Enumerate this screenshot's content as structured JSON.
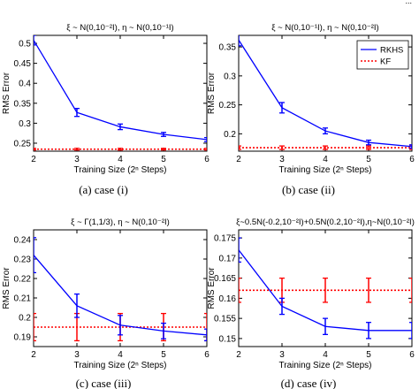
{
  "figure": {
    "header_fragment": "..."
  },
  "chart_data": [
    {
      "type": "line",
      "title": "ξ ~ N(0,10⁻²I), η ~ N(0,10⁻¹I)",
      "xlabel": "Training Size (2ⁿ Steps)",
      "ylabel": "RMS Error",
      "caption": "(a)  case (i)",
      "x": [
        2,
        3,
        4,
        5,
        6
      ],
      "xticks": [
        "2",
        "3",
        "4",
        "5",
        "6"
      ],
      "xlim": [
        2,
        6
      ],
      "ylim": [
        0.23,
        0.52
      ],
      "yticks": [
        0.25,
        0.3,
        0.35,
        0.4,
        0.45,
        0.5
      ],
      "ytick_labels": [
        "0.25",
        "0.3",
        "0.35",
        "0.4",
        "0.45",
        "0.5"
      ],
      "series": [
        {
          "name": "RKHS",
          "color": "#0000ff",
          "style": "solid",
          "values": [
            0.508,
            0.327,
            0.291,
            0.272,
            0.259
          ],
          "errors": [
            0.012,
            0.01,
            0.007,
            0.005,
            0.005
          ]
        },
        {
          "name": "KF",
          "color": "#ff0000",
          "style": "dotted",
          "values": [
            0.235,
            0.235,
            0.235,
            0.235,
            0.235
          ],
          "errors": [
            0.002,
            0.002,
            0.002,
            0.002,
            0.002
          ]
        }
      ],
      "legend": null
    },
    {
      "type": "line",
      "title": "ξ ~ N(0,10⁻¹I), η ~ N(0,10⁻²I)",
      "xlabel": "Training Size (2ⁿ Steps)",
      "ylabel": "RMS Error",
      "caption": "(b)  case (ii)",
      "x": [
        2,
        3,
        4,
        5,
        6
      ],
      "xticks": [
        "2",
        "3",
        "4",
        "5",
        "6"
      ],
      "xlim": [
        2,
        6
      ],
      "ylim": [
        0.17,
        0.37
      ],
      "yticks": [
        0.2,
        0.25,
        0.3,
        0.35
      ],
      "ytick_labels": [
        "0.2",
        "0.25",
        "0.3",
        "0.35"
      ],
      "series": [
        {
          "name": "RKHS",
          "color": "#0000ff",
          "style": "solid",
          "values": [
            0.362,
            0.245,
            0.205,
            0.185,
            0.178
          ],
          "errors": [
            0.01,
            0.009,
            0.005,
            0.004,
            0.003
          ]
        },
        {
          "name": "KF",
          "color": "#ff0000",
          "style": "dotted",
          "values": [
            0.176,
            0.176,
            0.176,
            0.176,
            0.176
          ],
          "errors": [
            0.003,
            0.003,
            0.003,
            0.003,
            0.003
          ]
        }
      ],
      "legend": {
        "position": "top-right",
        "entries": [
          "RKHS",
          "KF"
        ]
      }
    },
    {
      "type": "line",
      "title": "ξ ~ Γ(1,1/3), η ~ N(0,10⁻²I)",
      "xlabel": "Training Size (2ⁿ Steps)",
      "ylabel": "RMS Error",
      "caption": "(c)  case (iii)",
      "x": [
        2,
        3,
        4,
        5,
        6
      ],
      "xticks": [
        "2",
        "3",
        "4",
        "5",
        "6"
      ],
      "xlim": [
        2,
        6
      ],
      "ylim": [
        0.185,
        0.245
      ],
      "yticks": [
        0.19,
        0.2,
        0.21,
        0.22,
        0.23,
        0.24
      ],
      "ytick_labels": [
        "0.19",
        "0.2",
        "0.21",
        "0.22",
        "0.23",
        "0.24"
      ],
      "series": [
        {
          "name": "RKHS",
          "color": "#0000ff",
          "style": "solid",
          "values": [
            0.232,
            0.206,
            0.196,
            0.193,
            0.191
          ],
          "errors": [
            0.009,
            0.006,
            0.005,
            0.004,
            0.003
          ]
        },
        {
          "name": "KF",
          "color": "#ff0000",
          "style": "dotted",
          "values": [
            0.195,
            0.195,
            0.195,
            0.195,
            0.195
          ],
          "errors": [
            0.007,
            0.007,
            0.007,
            0.007,
            0.007
          ]
        }
      ],
      "legend": null
    },
    {
      "type": "line",
      "title": "ξ~0.5N(-0.2,10⁻²I)+0.5N(0.2,10⁻²I),η~N(0,10⁻²I)",
      "xlabel": "Training Size (2ⁿ Steps)",
      "ylabel": "RMS Error",
      "caption": "(d)  case (iv)",
      "x": [
        2,
        3,
        4,
        5,
        6
      ],
      "xticks": [
        "2",
        "3",
        "4",
        "5",
        "6"
      ],
      "xlim": [
        2,
        6
      ],
      "ylim": [
        0.148,
        0.177
      ],
      "yticks": [
        0.15,
        0.155,
        0.16,
        0.165,
        0.17,
        0.175
      ],
      "ytick_labels": [
        "0.15",
        "0.155",
        "0.16",
        "0.165",
        "0.17",
        "0.175"
      ],
      "series": [
        {
          "name": "RKHS",
          "color": "#0000ff",
          "style": "solid",
          "values": [
            0.172,
            0.158,
            0.153,
            0.152,
            0.152
          ],
          "errors": [
            0.003,
            0.002,
            0.002,
            0.002,
            0.002
          ]
        },
        {
          "name": "KF",
          "color": "#ff0000",
          "style": "dotted",
          "values": [
            0.162,
            0.162,
            0.162,
            0.162,
            0.162
          ],
          "errors": [
            0.003,
            0.003,
            0.003,
            0.003,
            0.003
          ]
        }
      ],
      "legend": null
    }
  ]
}
